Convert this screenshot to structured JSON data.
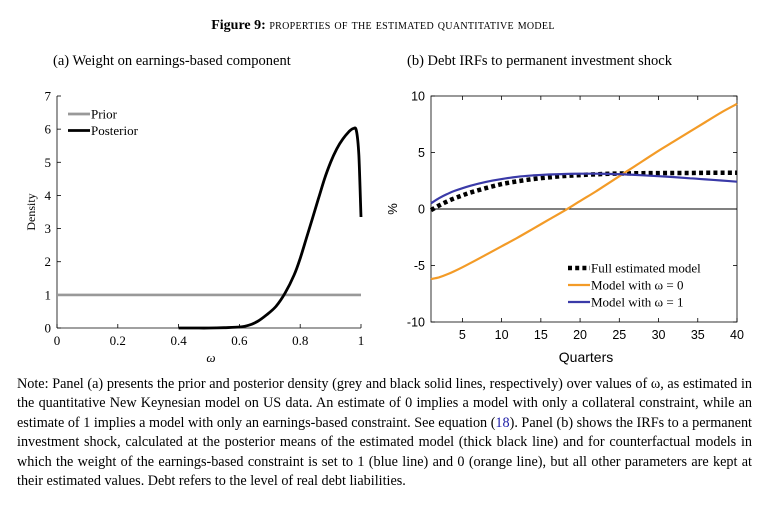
{
  "figure": {
    "label": "Figure 9:",
    "title": "properties of the estimated quantitative model"
  },
  "note": {
    "text_before_ref": "Note: Panel (a) presents the prior and posterior density (grey and black solid lines, respectively) over values of ω, as estimated in the quantitative New Keynesian model on US data. An estimate of 0 implies a model with only a collateral constraint, while an estimate of 1 implies a model with only an earnings-based constraint. See equation (",
    "ref": "18",
    "text_after_ref": "). Panel (b) shows the IRFs to a permanent investment shock, calculated at the posterior means of the estimated model (thick black line) and for counterfactual models in which the weight of the earnings-based constraint is set to 1 (blue line) and 0 (orange line), but all other parameters are kept at their estimated values. Debt refers to the level of real debt liabilities."
  },
  "chart_data": [
    {
      "type": "line",
      "title": "(a) Weight on earnings-based component",
      "xlabel": "ω",
      "ylabel": "Density",
      "xlim": [
        0,
        1
      ],
      "ylim": [
        0,
        7
      ],
      "xticks": [
        "0",
        "0.2",
        "0.4",
        "0.6",
        "0.8",
        "1"
      ],
      "yticks": [
        "0",
        "1",
        "2",
        "3",
        "4",
        "5",
        "6",
        "7"
      ],
      "legend_position": "top-left",
      "series": [
        {
          "name": "Prior",
          "color": "#999999",
          "x": [
            0,
            1
          ],
          "y": [
            1,
            1
          ]
        },
        {
          "name": "Posterior",
          "color": "#000000",
          "x": [
            0.4,
            0.45,
            0.5,
            0.55,
            0.6,
            0.63,
            0.66,
            0.69,
            0.72,
            0.75,
            0.78,
            0.8,
            0.82,
            0.84,
            0.86,
            0.88,
            0.9,
            0.92,
            0.94,
            0.96,
            0.975,
            0.985,
            0.993,
            1.0
          ],
          "y": [
            0.0,
            0.0,
            0.0,
            0.01,
            0.03,
            0.08,
            0.2,
            0.4,
            0.65,
            1.05,
            1.6,
            2.1,
            2.7,
            3.3,
            3.9,
            4.5,
            5.0,
            5.4,
            5.7,
            5.92,
            6.02,
            5.95,
            5.2,
            3.35
          ]
        }
      ]
    },
    {
      "type": "line",
      "title": "(b) Debt IRFs to permanent investment shock",
      "xlabel": "Quarters",
      "ylabel": "%",
      "xlim": [
        1,
        40
      ],
      "ylim": [
        -10,
        10
      ],
      "xticks": [
        "5",
        "10",
        "15",
        "20",
        "25",
        "30",
        "35",
        "40"
      ],
      "yticks": [
        "-10",
        "-5",
        "0",
        "5",
        "10"
      ],
      "legend_position": "bottom-right",
      "series": [
        {
          "name": "Full estimated model",
          "color": "#000000",
          "style": "dotted-thick",
          "x": [
            1,
            2,
            3,
            4,
            5,
            6,
            8,
            10,
            12,
            14,
            16,
            18,
            20,
            22,
            24,
            26,
            28,
            30,
            32,
            34,
            36,
            38,
            40
          ],
          "y": [
            -0.1,
            0.3,
            0.65,
            0.95,
            1.2,
            1.45,
            1.85,
            2.2,
            2.45,
            2.65,
            2.8,
            2.92,
            3.0,
            3.07,
            3.12,
            3.15,
            3.17,
            3.18,
            3.19,
            3.19,
            3.2,
            3.2,
            3.2
          ]
        },
        {
          "name": "Model with ω = 0",
          "color": "#f39b27",
          "x": [
            1,
            2,
            3,
            4,
            6,
            8,
            10,
            12,
            14,
            16,
            18,
            20,
            22,
            24,
            26,
            28,
            30,
            32,
            34,
            36,
            38,
            40
          ],
          "y": [
            -6.2,
            -6.05,
            -5.8,
            -5.5,
            -4.8,
            -4.05,
            -3.3,
            -2.55,
            -1.75,
            -0.95,
            -0.15,
            0.7,
            1.55,
            2.45,
            3.35,
            4.25,
            5.15,
            6.0,
            6.85,
            7.7,
            8.55,
            9.3
          ]
        },
        {
          "name": "Model with ω = 1",
          "color": "#3a3aa8",
          "x": [
            1,
            2,
            3,
            4,
            6,
            8,
            10,
            12,
            14,
            16,
            18,
            20,
            22,
            24,
            26,
            28,
            30,
            32,
            34,
            36,
            38,
            40
          ],
          "y": [
            0.5,
            0.95,
            1.3,
            1.6,
            2.05,
            2.4,
            2.65,
            2.85,
            2.97,
            3.05,
            3.1,
            3.12,
            3.12,
            3.1,
            3.05,
            2.98,
            2.9,
            2.82,
            2.72,
            2.62,
            2.52,
            2.42
          ]
        }
      ]
    }
  ]
}
